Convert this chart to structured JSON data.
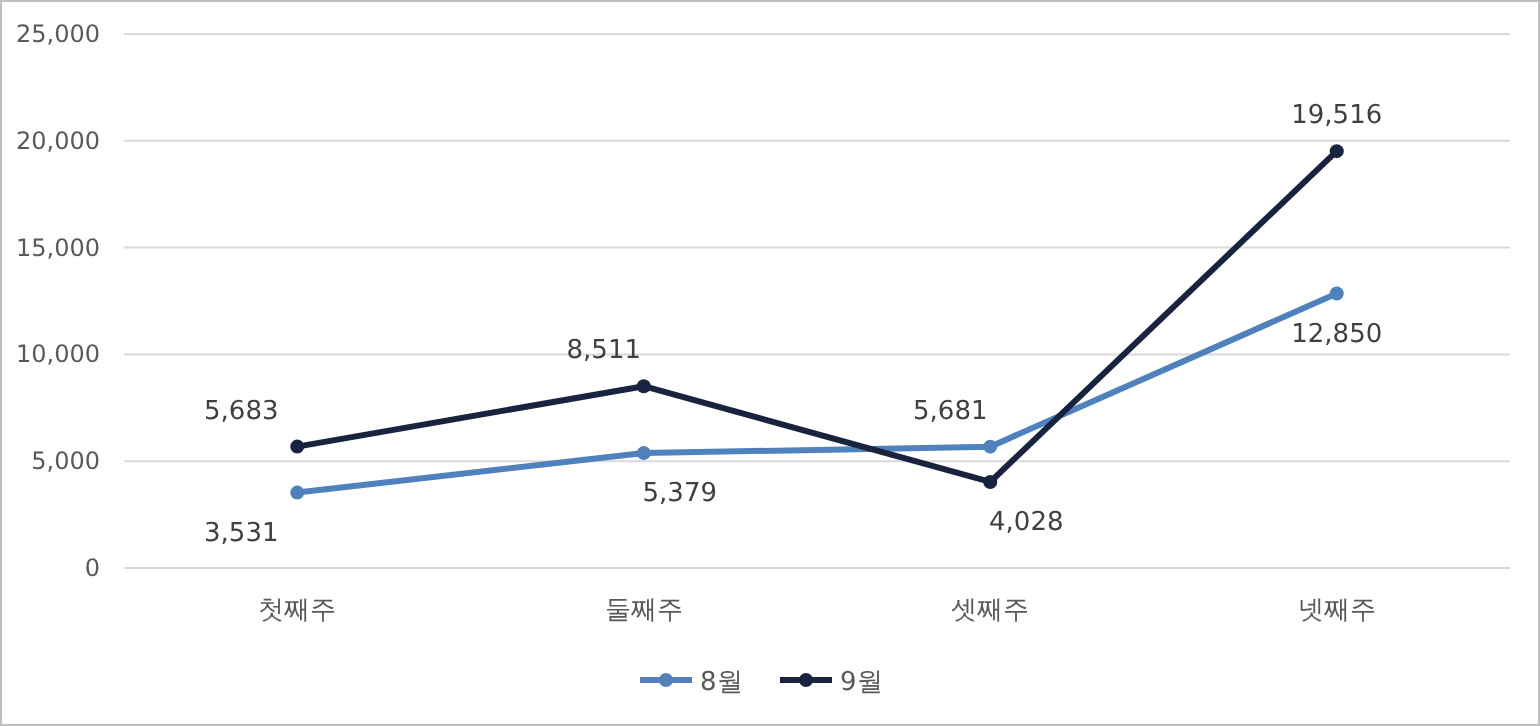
{
  "chart_data": {
    "type": "line",
    "categories": [
      "첫째주",
      "둘째주",
      "셋째주",
      "넷째주"
    ],
    "series": [
      {
        "name": "8월",
        "color": "#4f81bd",
        "values": [
          3531,
          5379,
          5681,
          12850
        ],
        "value_labels": [
          "3,531",
          "5,379",
          "5,681",
          "12,850"
        ]
      },
      {
        "name": "9월",
        "color": "#17233f",
        "values": [
          5683,
          8511,
          4028,
          19516
        ],
        "value_labels": [
          "5,683",
          "8,511",
          "4,028",
          "19,516"
        ]
      }
    ],
    "ylim": [
      0,
      25000
    ],
    "yticks": [
      {
        "value": 0,
        "label": "0"
      },
      {
        "value": 5000,
        "label": "5,000"
      },
      {
        "value": 10000,
        "label": "10,000"
      },
      {
        "value": 15000,
        "label": "15,000"
      },
      {
        "value": 20000,
        "label": "20,000"
      },
      {
        "value": 25000,
        "label": "25,000"
      }
    ],
    "grid": "y",
    "legend": "bottom",
    "marker": "circle",
    "line_style": "solid"
  }
}
